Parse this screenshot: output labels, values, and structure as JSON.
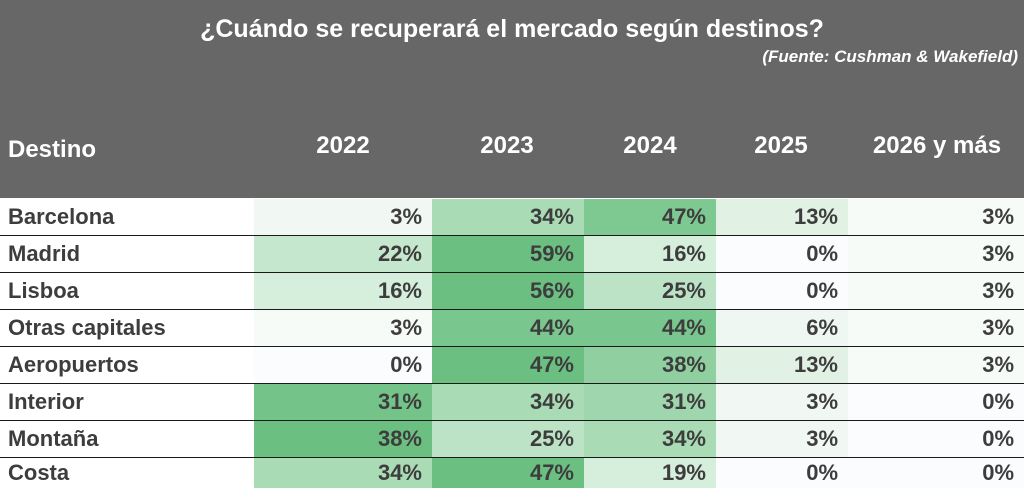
{
  "chart_data": {
    "type": "table",
    "title": "¿Cuándo se recuperará el mercado según destinos?",
    "subtitle": "(Fuente: Cushman & Wakefield)",
    "row_header": "Destino",
    "columns": [
      "2022",
      "2023",
      "2024",
      "2025",
      "2026 y más"
    ],
    "rows": [
      {
        "name": "Barcelona",
        "values": [
          "3%",
          "34%",
          "47%",
          "13%",
          "3%"
        ],
        "colors": [
          "#f1f8f3",
          "#a9dbb5",
          "#7ec892",
          "#e1f2e5",
          "#f7fbf8"
        ]
      },
      {
        "name": "Madrid",
        "values": [
          "22%",
          "59%",
          "16%",
          "0%",
          "3%"
        ],
        "colors": [
          "#c5e7cd",
          "#6bbf81",
          "#d6eedc",
          "#fbfcfe",
          "#f7fbf8"
        ]
      },
      {
        "name": "Lisboa",
        "values": [
          "16%",
          "56%",
          "25%",
          "0%",
          "3%"
        ],
        "colors": [
          "#d6eedc",
          "#6bbf81",
          "#bde3c6",
          "#fbfcfe",
          "#f7fbf8"
        ]
      },
      {
        "name": "Otras capitales",
        "values": [
          "3%",
          "44%",
          "44%",
          "6%",
          "3%"
        ],
        "colors": [
          "#f7fbf8",
          "#79c68e",
          "#79c68e",
          "#eef7f1",
          "#f7fbf8"
        ]
      },
      {
        "name": "Aeropuertos",
        "values": [
          "0%",
          "47%",
          "38%",
          "13%",
          "3%"
        ],
        "colors": [
          "#fbfcfe",
          "#6bbf81",
          "#8fcfa0",
          "#e1f2e5",
          "#f7fbf8"
        ]
      },
      {
        "name": "Interior",
        "values": [
          "31%",
          "34%",
          "31%",
          "3%",
          "0%"
        ],
        "colors": [
          "#74c389",
          "#a9dbb5",
          "#9fd6ad",
          "#f1f8f3",
          "#fbfcfe"
        ]
      },
      {
        "name": "Montaña",
        "values": [
          "38%",
          "25%",
          "34%",
          "3%",
          "0%"
        ],
        "colors": [
          "#6bbf81",
          "#bde3c6",
          "#a9dbb5",
          "#f1f8f3",
          "#fbfcfe"
        ]
      },
      {
        "name": "Costa",
        "values": [
          "34%",
          "47%",
          "19%",
          "0%",
          "0%"
        ],
        "colors": [
          "#a9dbb5",
          "#6bbf81",
          "#d6eedc",
          "#fbfcfe",
          "#fbfcfe"
        ]
      }
    ]
  }
}
